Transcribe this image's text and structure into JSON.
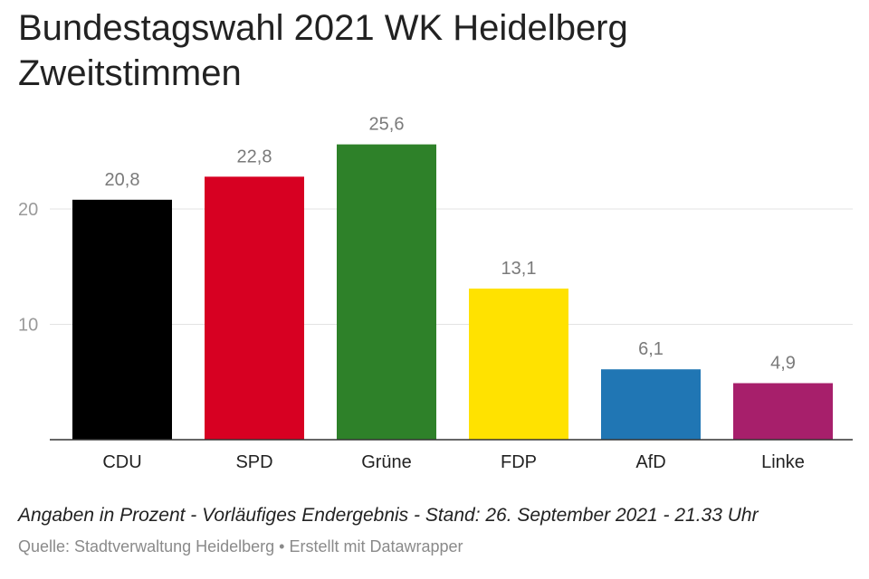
{
  "chart_data": {
    "type": "bar",
    "title_lines": [
      "Bundestagswahl 2021 WK Heidelberg",
      "Zweitstimmen"
    ],
    "categories": [
      "CDU",
      "SPD",
      "Grüne",
      "FDP",
      "AfD",
      "Linke"
    ],
    "values": [
      20.8,
      22.8,
      25.6,
      13.1,
      6.1,
      4.9
    ],
    "value_labels": [
      "20,8",
      "22,8",
      "25,6",
      "13,1",
      "6,1",
      "4,9"
    ],
    "colors": [
      "#000000",
      "#d70022",
      "#2e8129",
      "#ffe200",
      "#2076b4",
      "#a71f6b"
    ],
    "yticks": [
      10,
      20
    ],
    "ytick_labels": [
      "10",
      "20"
    ],
    "ylim": [
      0,
      28
    ],
    "grid": true,
    "xlabel": "",
    "ylabel": ""
  },
  "footer": {
    "note": "Angaben in Prozent - Vorläufiges Endergebnis - Stand: 26. September 2021 - 21.33 Uhr",
    "source": "Quelle: Stadtverwaltung Heidelberg • Erstellt mit Datawrapper"
  }
}
